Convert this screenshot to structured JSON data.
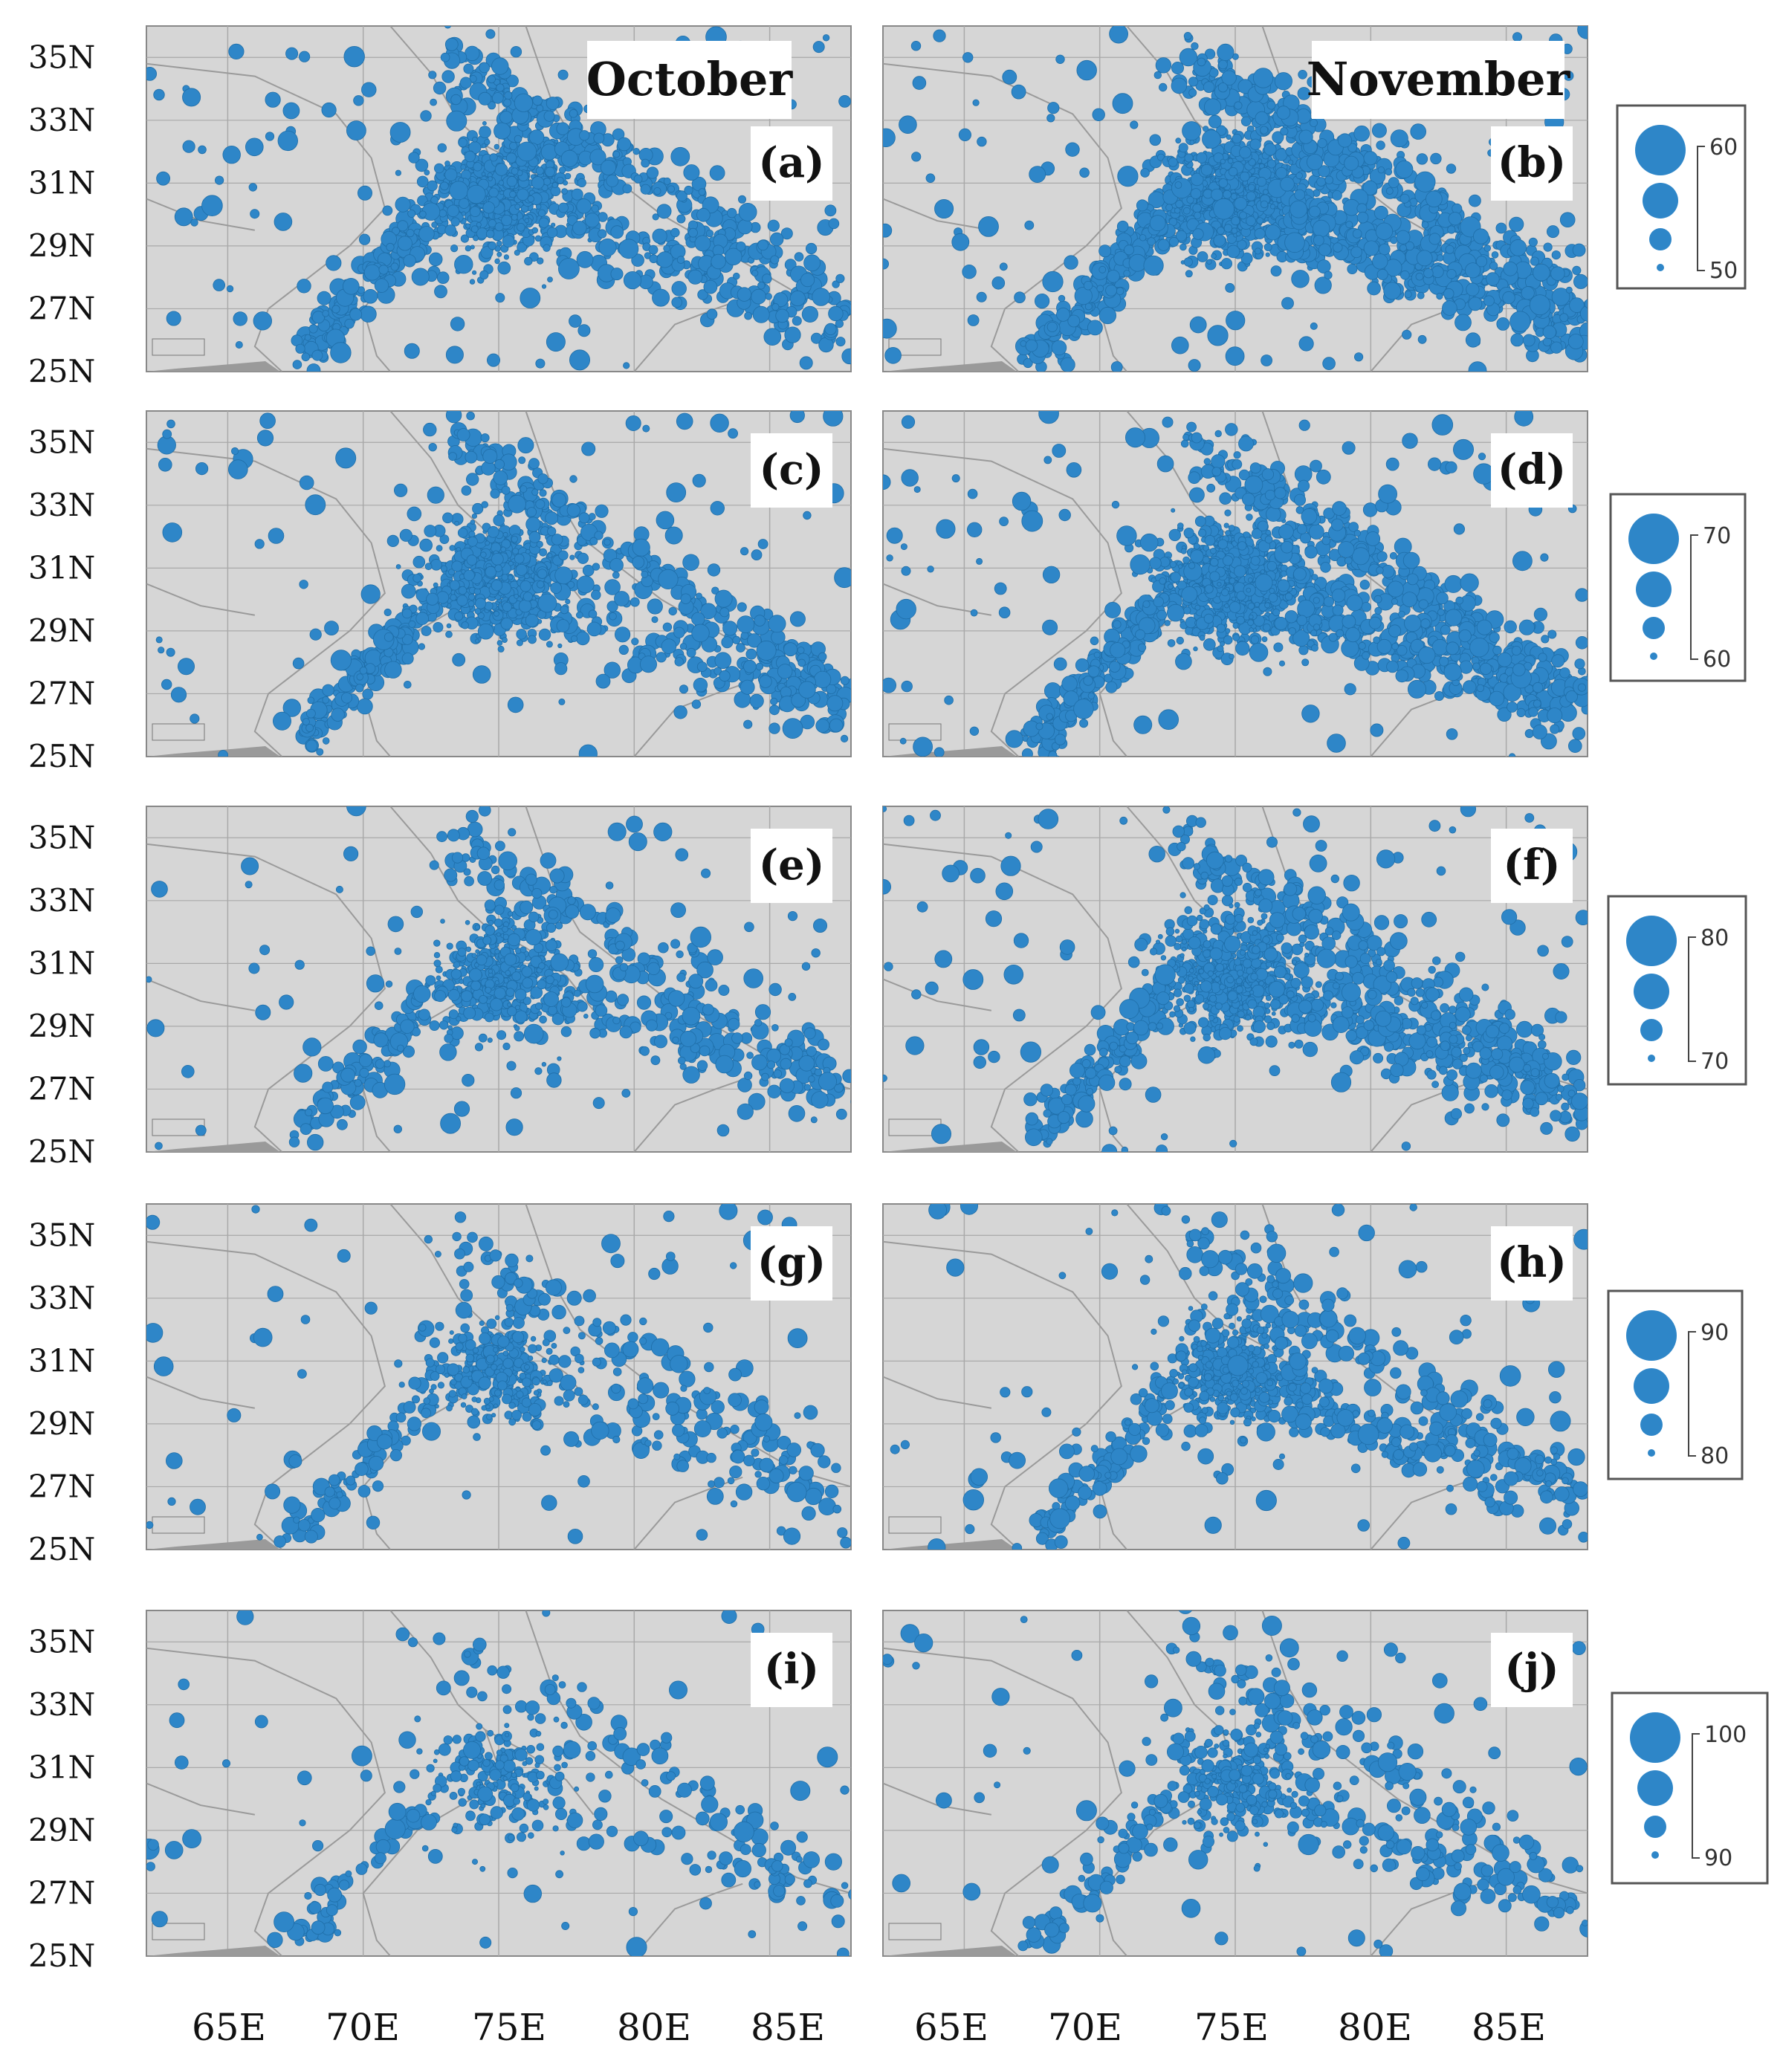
{
  "months": [
    "October",
    "November"
  ],
  "lat_labels": [
    "35N",
    "33N",
    "31N",
    "29N",
    "27N",
    "25N"
  ],
  "lon_labels": [
    "65E",
    "70E",
    "75E",
    "80E",
    "85E"
  ],
  "panels": [
    {
      "tag": "(a)",
      "month": "October",
      "row": 0,
      "density": 1.0
    },
    {
      "tag": "(b)",
      "month": "November",
      "row": 0,
      "density": 1.25
    },
    {
      "tag": "(c)",
      "month": "October",
      "row": 1,
      "density": 0.85
    },
    {
      "tag": "(d)",
      "month": "November",
      "row": 1,
      "density": 1.1
    },
    {
      "tag": "(e)",
      "month": "October",
      "row": 2,
      "density": 0.65
    },
    {
      "tag": "(f)",
      "month": "November",
      "row": 2,
      "density": 0.9
    },
    {
      "tag": "(g)",
      "month": "October",
      "row": 3,
      "density": 0.45
    },
    {
      "tag": "(h)",
      "month": "November",
      "row": 3,
      "density": 0.6
    },
    {
      "tag": "(i)",
      "month": "October",
      "row": 4,
      "density": 0.3
    },
    {
      "tag": "(j)",
      "month": "November",
      "row": 4,
      "density": 0.4
    }
  ],
  "legends": [
    {
      "max": "60",
      "min": "50"
    },
    {
      "max": "70",
      "min": "60"
    },
    {
      "max": "80",
      "min": "70"
    },
    {
      "max": "90",
      "min": "80"
    },
    {
      "max": "100",
      "min": "90"
    }
  ],
  "colors": {
    "marker": "#2e86c8",
    "marker_edge": "#1f6ea8",
    "map_bg": "#d6d6d6",
    "grid": "#a9a9a9",
    "border": "#9a9a9a"
  }
}
